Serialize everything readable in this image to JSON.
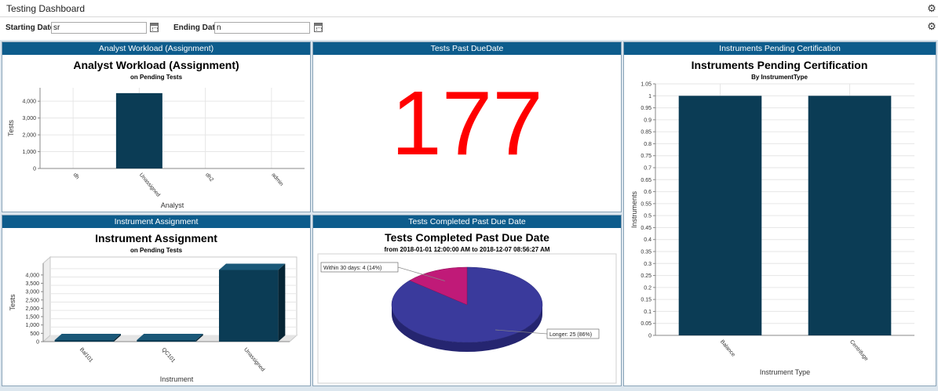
{
  "app": {
    "title": "Testing Dashboard"
  },
  "filters": {
    "start_label": "Starting Date",
    "start_value": "sr",
    "end_label": "Ending Date",
    "end_value": "n"
  },
  "icons": {
    "settings": "gear-icon",
    "calendar": "calendar-icon"
  },
  "colors": {
    "header_blue": "#0d5c8c",
    "bar_navy": "#0b3c55",
    "big_number_red": "#ff0000",
    "pie_blue": "#3a3a9c",
    "pie_magenta": "#c01a78"
  },
  "panels": {
    "analyst": {
      "header": "Analyst Workload (Assignment)"
    },
    "pastdue": {
      "header": "Tests Past DueDate",
      "value": "177"
    },
    "instruments_cert": {
      "header": "Instruments Pending Certification"
    },
    "instrument_assign": {
      "header": "Instrument Assignment"
    },
    "completed_pastdue": {
      "header": "Tests Completed Past Due Date"
    }
  },
  "chart_data": [
    {
      "id": "analyst",
      "type": "bar",
      "title": "Analyst Workload (Assignment)",
      "subtitle": "on Pending Tests",
      "xlabel": "Analyst",
      "ylabel": "Tests",
      "categories": [
        "dh",
        "Unassigned",
        "dh2",
        "admin"
      ],
      "values": [
        0,
        4480,
        0,
        0
      ],
      "ylim": [
        0,
        4800
      ],
      "yticks": [
        0,
        1000,
        2000,
        3000,
        4000
      ],
      "ytick_labels": [
        "0",
        "1,000",
        "2,000",
        "3,000",
        "4,000"
      ],
      "grid": true
    },
    {
      "id": "instrument_assign",
      "type": "bar",
      "style": "3d",
      "title": "Instrument Assignment",
      "subtitle": "on Pending Tests",
      "xlabel": "Instrument",
      "ylabel": "Tests",
      "categories": [
        "Bal101",
        "QC101",
        "Unassigned"
      ],
      "values": [
        50,
        40,
        4300
      ],
      "ylim": [
        0,
        4700
      ],
      "yticks": [
        0,
        500,
        1000,
        1500,
        2000,
        2500,
        3000,
        3500,
        4000
      ],
      "ytick_labels": [
        "0",
        "500",
        "1,000",
        "1,500",
        "2,000",
        "2,500",
        "3,000",
        "3,500",
        "4,000"
      ],
      "grid": true
    },
    {
      "id": "completed_pastdue",
      "type": "pie",
      "style": "3d",
      "title": "Tests Completed Past Due Date",
      "subtitle": "from 2018-01-01 12:00:00 AM to 2018-12-07 08:56:27 AM",
      "slices": [
        {
          "label": "Within 30 days: 4 (14%)",
          "value": 4,
          "color": "#c01a78"
        },
        {
          "label": "Longer: 25 (86%)",
          "value": 25,
          "color": "#3a3a9c"
        }
      ]
    },
    {
      "id": "instruments_cert",
      "type": "bar",
      "title": "Instruments Pending Certification",
      "subtitle": "By InstrumentType",
      "xlabel": "Instrument Type",
      "ylabel": "Instruments",
      "categories": [
        "Balance",
        "Centrifuge"
      ],
      "values": [
        1,
        1
      ],
      "ylim": [
        0,
        1.05
      ],
      "yticks": [
        0,
        0.05,
        0.1,
        0.15,
        0.2,
        0.25,
        0.3,
        0.35,
        0.4,
        0.45,
        0.5,
        0.55,
        0.6,
        0.65,
        0.7,
        0.75,
        0.8,
        0.85,
        0.9,
        0.95,
        1,
        1.05
      ],
      "ytick_labels": [
        "0",
        "0.05",
        "0.1",
        "0.15",
        "0.2",
        "0.25",
        "0.3",
        "0.35",
        "0.4",
        "0.45",
        "0.5",
        "0.55",
        "0.6",
        "0.65",
        "0.7",
        "0.75",
        "0.8",
        "0.85",
        "0.9",
        "0.95",
        "1",
        "1.05"
      ],
      "grid": true
    }
  ]
}
